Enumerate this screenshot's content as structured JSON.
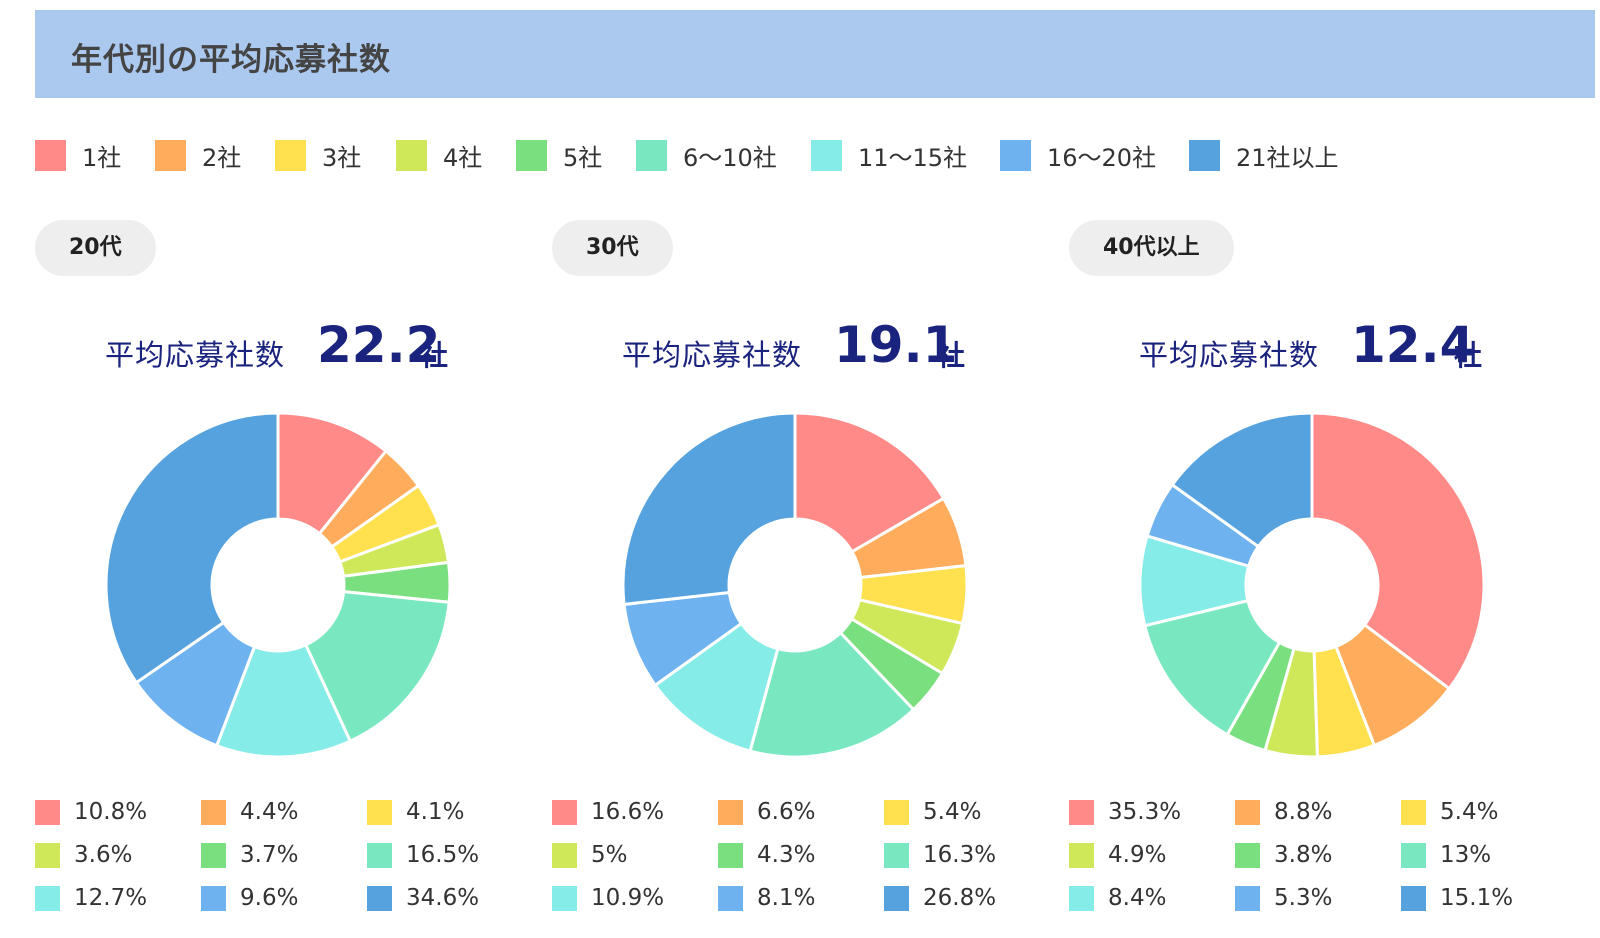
{
  "header": {
    "title": "年代別の平均応募社数"
  },
  "legend": {
    "items": [
      {
        "label": "1社",
        "color": "#ff8a87"
      },
      {
        "label": "2社",
        "color": "#ffad5c"
      },
      {
        "label": "3社",
        "color": "#ffe04f"
      },
      {
        "label": "4社",
        "color": "#cfe85a"
      },
      {
        "label": "5社",
        "color": "#79df7f"
      },
      {
        "label": "6～10社",
        "color": "#79e8c0"
      },
      {
        "label": "11～15社",
        "color": "#85ece8"
      },
      {
        "label": "16～20社",
        "color": "#6fb2f0"
      },
      {
        "label": "21社以上",
        "color": "#56a2de"
      }
    ]
  },
  "panels": [
    {
      "age": "20代",
      "avg_label": "平均応募社数",
      "avg_value": "22.2",
      "avg_unit": "社",
      "percent_labels": [
        "10.8%",
        "4.4%",
        "4.1%",
        "3.6%",
        "3.7%",
        "16.5%",
        "12.7%",
        "9.6%",
        "34.6%"
      ]
    },
    {
      "age": "30代",
      "avg_label": "平均応募社数",
      "avg_value": "19.1",
      "avg_unit": "社",
      "percent_labels": [
        "16.6%",
        "6.6%",
        "5.4%",
        "5%",
        "4.3%",
        "16.3%",
        "10.9%",
        "8.1%",
        "26.8%"
      ]
    },
    {
      "age": "40代以上",
      "avg_label": "平均応募社数",
      "avg_value": "12.4",
      "avg_unit": "社",
      "percent_labels": [
        "35.3%",
        "8.8%",
        "5.4%",
        "4.9%",
        "3.8%",
        "13%",
        "8.4%",
        "5.3%",
        "15.1%"
      ]
    }
  ],
  "chart_data": [
    {
      "type": "pie",
      "title": "20代",
      "categories": [
        "1社",
        "2社",
        "3社",
        "4社",
        "5社",
        "6～10社",
        "11～15社",
        "16～20社",
        "21社以上"
      ],
      "values": [
        10.8,
        4.4,
        4.1,
        3.6,
        3.7,
        16.5,
        12.7,
        9.6,
        34.6
      ],
      "unit": "%",
      "donut": true,
      "legend": "top"
    },
    {
      "type": "pie",
      "title": "30代",
      "categories": [
        "1社",
        "2社",
        "3社",
        "4社",
        "5社",
        "6～10社",
        "11～15社",
        "16～20社",
        "21社以上"
      ],
      "values": [
        16.6,
        6.6,
        5.4,
        5.0,
        4.3,
        16.3,
        10.9,
        8.1,
        26.8
      ],
      "unit": "%",
      "donut": true,
      "legend": "top"
    },
    {
      "type": "pie",
      "title": "40代以上",
      "categories": [
        "1社",
        "2社",
        "3社",
        "4社",
        "5社",
        "6～10社",
        "11～15社",
        "16～20社",
        "21社以上"
      ],
      "values": [
        35.3,
        8.8,
        5.4,
        4.9,
        3.8,
        13.0,
        8.4,
        5.3,
        15.1
      ],
      "unit": "%",
      "donut": true,
      "legend": "top"
    }
  ]
}
